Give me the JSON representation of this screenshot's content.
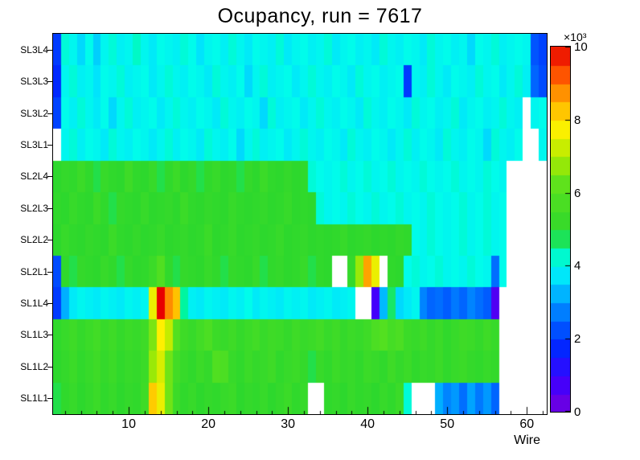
{
  "chart_data": {
    "type": "heatmap",
    "title": "Ocupancy, run = 7617",
    "xlabel": "Wire",
    "n_wires": 62,
    "x_range": [
      0.5,
      62.5
    ],
    "x_ticks": [
      10,
      20,
      30,
      40,
      50,
      60
    ],
    "z_range": [
      0,
      10
    ],
    "z_ticks": [
      0,
      2,
      4,
      6,
      8,
      10
    ],
    "z_exponent": "×10³",
    "values_unit": "×10³ counts",
    "no_data_color": "#ffffff",
    "frame_color": "#000000",
    "palette_stops": [
      [
        0.0,
        120,
        0,
        219
      ],
      [
        0.9,
        60,
        0,
        255
      ],
      [
        1.8,
        0,
        40,
        255
      ],
      [
        2.6,
        0,
        110,
        255
      ],
      [
        3.2,
        0,
        175,
        255
      ],
      [
        3.7,
        0,
        228,
        252
      ],
      [
        4.1,
        0,
        252,
        235
      ],
      [
        4.5,
        0,
        245,
        160
      ],
      [
        4.9,
        45,
        216,
        45
      ],
      [
        6.2,
        90,
        225,
        30
      ],
      [
        7.0,
        175,
        235,
        0
      ],
      [
        7.8,
        255,
        240,
        0
      ],
      [
        8.5,
        255,
        175,
        0
      ],
      [
        9.2,
        255,
        90,
        0
      ],
      [
        10.0,
        232,
        0,
        0
      ]
    ],
    "rows": [
      {
        "label": "SL3L4",
        "values": [
          2.0,
          4.2,
          4.0,
          3.6,
          4.1,
          3.5,
          4.0,
          4.2,
          3.9,
          4.0,
          4.3,
          4.0,
          3.8,
          4.1,
          4.0,
          3.9,
          4.2,
          4.1,
          3.7,
          4.0,
          4.1,
          3.9,
          4.2,
          4.0,
          3.8,
          4.1,
          4.0,
          3.9,
          4.2,
          3.8,
          4.0,
          4.1,
          3.9,
          4.0,
          4.2,
          3.8,
          4.0,
          4.1,
          3.9,
          4.0,
          3.8,
          4.2,
          4.0,
          3.9,
          4.1,
          4.0,
          3.8,
          4.2,
          4.0,
          4.1,
          3.9,
          4.0,
          3.6,
          4.1,
          4.0,
          4.2,
          3.9,
          4.0,
          4.1,
          4.0,
          2.3,
          2.1
        ]
      },
      {
        "label": "SL3L3",
        "values": [
          1.8,
          4.0,
          4.2,
          3.9,
          4.0,
          3.7,
          4.1,
          4.0,
          4.2,
          3.9,
          4.0,
          4.1,
          3.8,
          4.0,
          4.2,
          4.0,
          3.9,
          4.1,
          4.0,
          3.8,
          4.2,
          4.0,
          3.9,
          4.1,
          3.6,
          4.0,
          4.2,
          3.9,
          4.0,
          4.1,
          3.8,
          4.0,
          4.2,
          4.0,
          3.9,
          4.1,
          4.0,
          3.8,
          4.2,
          4.0,
          4.1,
          3.9,
          4.0,
          4.1,
          2.0,
          4.0,
          3.9,
          4.2,
          4.0,
          3.8,
          4.1,
          4.0,
          3.9,
          4.2,
          4.0,
          4.1,
          3.8,
          4.0,
          4.2,
          3.9,
          2.5,
          2.2
        ]
      },
      {
        "label": "SL3L2",
        "values": [
          2.1,
          4.1,
          3.9,
          4.2,
          4.0,
          3.8,
          4.1,
          3.6,
          4.0,
          4.2,
          3.9,
          4.0,
          4.1,
          3.8,
          4.0,
          4.2,
          4.0,
          3.9,
          4.1,
          4.0,
          3.8,
          4.2,
          4.0,
          3.9,
          4.1,
          4.0,
          3.6,
          4.2,
          3.9,
          4.0,
          4.1,
          3.8,
          4.0,
          4.2,
          4.0,
          3.9,
          4.1,
          4.0,
          3.8,
          4.2,
          4.0,
          3.9,
          4.1,
          4.0,
          3.8,
          4.2,
          4.0,
          4.1,
          3.9,
          4.0,
          4.2,
          3.8,
          4.0,
          4.1,
          3.9,
          4.0,
          4.2,
          4.0,
          3.9,
          null,
          4.0,
          4.1
        ]
      },
      {
        "label": "SL3L1",
        "values": [
          null,
          4.0,
          4.2,
          3.9,
          4.1,
          4.0,
          3.8,
          4.2,
          4.0,
          3.9,
          4.1,
          4.0,
          3.8,
          4.0,
          4.2,
          3.9,
          4.1,
          4.0,
          3.8,
          4.2,
          4.0,
          3.9,
          4.1,
          3.6,
          4.0,
          4.2,
          3.9,
          4.0,
          4.1,
          3.8,
          4.0,
          4.2,
          4.0,
          3.9,
          4.1,
          4.0,
          3.8,
          4.2,
          4.0,
          3.9,
          4.1,
          4.0,
          3.8,
          4.0,
          4.2,
          3.9,
          4.1,
          4.0,
          3.8,
          4.2,
          4.0,
          3.9,
          4.1,
          4.0,
          3.6,
          4.2,
          4.0,
          3.9,
          4.1,
          null,
          null,
          4.0
        ]
      },
      {
        "label": "SL2L4",
        "values": [
          4.9,
          5.1,
          5.0,
          5.3,
          5.0,
          4.8,
          5.2,
          5.0,
          4.9,
          5.4,
          5.0,
          4.9,
          5.2,
          4.8,
          5.0,
          5.3,
          4.9,
          5.1,
          4.8,
          5.0,
          5.2,
          4.9,
          5.0,
          4.8,
          5.1,
          4.9,
          5.3,
          5.0,
          4.9,
          5.1,
          4.9,
          5.0,
          4.2,
          4.1,
          4.0,
          4.1,
          4.2,
          4.0,
          4.1,
          4.2,
          4.0,
          4.1,
          4.2,
          4.0,
          4.1,
          4.0,
          4.2,
          4.1,
          4.0,
          4.1,
          4.2,
          4.0,
          4.1,
          4.0,
          4.2,
          4.1,
          4.0,
          null,
          null,
          null,
          null,
          null
        ]
      },
      {
        "label": "SL2L3",
        "values": [
          5.0,
          4.9,
          5.2,
          5.0,
          4.9,
          5.3,
          5.0,
          4.8,
          5.1,
          5.0,
          4.9,
          5.2,
          4.9,
          5.0,
          5.1,
          4.9,
          5.3,
          5.0,
          4.9,
          5.1,
          5.0,
          4.9,
          5.2,
          5.0,
          4.9,
          5.0,
          5.1,
          4.9,
          5.0,
          5.2,
          4.9,
          5.0,
          4.9,
          4.2,
          4.0,
          4.1,
          4.0,
          4.2,
          4.1,
          4.0,
          4.2,
          4.0,
          4.1,
          4.2,
          4.0,
          4.1,
          4.0,
          4.2,
          4.1,
          4.0,
          4.1,
          4.2,
          4.0,
          4.1,
          4.2,
          4.0,
          4.1,
          null,
          null,
          null,
          null,
          null
        ]
      },
      {
        "label": "SL2L2",
        "values": [
          4.9,
          5.2,
          5.0,
          4.9,
          5.1,
          5.0,
          4.9,
          5.3,
          5.0,
          4.9,
          5.1,
          4.9,
          5.0,
          5.2,
          4.9,
          5.0,
          5.1,
          4.9,
          5.0,
          5.3,
          4.9,
          5.0,
          5.2,
          4.9,
          5.0,
          5.1,
          4.9,
          5.0,
          5.2,
          4.9,
          5.0,
          5.1,
          4.9,
          5.0,
          4.9,
          5.0,
          5.2,
          4.9,
          5.0,
          5.1,
          4.9,
          5.0,
          4.9,
          5.1,
          5.0,
          4.1,
          4.0,
          4.2,
          4.1,
          4.0,
          4.1,
          4.2,
          4.0,
          4.1,
          4.2,
          4.0,
          4.1,
          null,
          null,
          null,
          null,
          null
        ]
      },
      {
        "label": "SL2L1",
        "values": [
          2.2,
          5.0,
          4.8,
          5.1,
          5.0,
          4.9,
          5.2,
          5.0,
          4.8,
          5.1,
          4.9,
          5.0,
          5.3,
          5.9,
          5.0,
          4.8,
          5.1,
          5.0,
          4.9,
          5.2,
          5.0,
          4.8,
          5.1,
          5.0,
          4.9,
          5.2,
          4.8,
          5.0,
          5.1,
          4.9,
          5.0,
          5.2,
          4.8,
          5.0,
          4.9,
          null,
          null,
          5.1,
          6.8,
          8.6,
          7.6,
          null,
          5.0,
          4.9,
          4.1,
          4.2,
          4.0,
          4.1,
          4.2,
          4.0,
          4.1,
          4.0,
          4.2,
          4.1,
          4.0,
          2.6,
          4.1,
          null,
          null,
          null,
          null,
          null
        ]
      },
      {
        "label": "SL1L4",
        "values": [
          2.0,
          3.2,
          3.8,
          4.0,
          3.9,
          3.8,
          4.0,
          3.9,
          3.8,
          4.0,
          3.9,
          4.0,
          7.6,
          10.0,
          8.8,
          8.3,
          4.5,
          3.9,
          3.8,
          4.0,
          3.9,
          3.8,
          4.0,
          3.9,
          4.1,
          3.8,
          4.0,
          3.9,
          3.8,
          4.0,
          3.9,
          4.0,
          3.8,
          3.9,
          4.0,
          3.8,
          3.9,
          4.0,
          null,
          null,
          0.8,
          3.3,
          4.7,
          3.6,
          3.8,
          4.0,
          2.8,
          2.5,
          2.6,
          2.4,
          2.7,
          2.5,
          2.8,
          2.6,
          2.4,
          0.6,
          null,
          null,
          null,
          null,
          null,
          null
        ]
      },
      {
        "label": "SL1L3",
        "values": [
          5.0,
          5.2,
          5.4,
          5.1,
          5.3,
          5.5,
          5.2,
          5.4,
          5.1,
          5.3,
          5.2,
          5.4,
          6.5,
          7.8,
          7.2,
          6.0,
          5.4,
          5.2,
          5.5,
          5.8,
          5.3,
          5.2,
          5.4,
          5.1,
          5.3,
          5.5,
          5.2,
          5.4,
          5.3,
          5.1,
          5.4,
          5.2,
          5.3,
          5.5,
          5.2,
          5.4,
          5.1,
          5.3,
          5.2,
          5.4,
          5.8,
          6.0,
          5.6,
          5.8,
          5.3,
          5.2,
          5.4,
          5.1,
          5.3,
          5.0,
          5.2,
          5.4,
          5.3,
          5.1,
          5.4,
          5.2,
          null,
          null,
          null,
          null,
          null,
          null
        ]
      },
      {
        "label": "SL1L2",
        "values": [
          4.9,
          5.1,
          5.3,
          5.0,
          5.2,
          5.4,
          5.1,
          5.3,
          5.0,
          5.2,
          5.1,
          5.3,
          6.8,
          7.4,
          6.4,
          5.5,
          5.2,
          5.0,
          5.3,
          5.1,
          5.9,
          5.8,
          5.2,
          5.0,
          5.3,
          5.1,
          5.2,
          5.4,
          5.0,
          5.2,
          5.3,
          5.1,
          4.8,
          5.2,
          5.0,
          5.3,
          5.1,
          5.2,
          5.0,
          5.3,
          5.2,
          5.0,
          5.4,
          5.1,
          5.3,
          5.0,
          5.2,
          5.1,
          5.3,
          5.0,
          5.2,
          5.3,
          5.1,
          5.0,
          5.2,
          5.1,
          null,
          null,
          null,
          null,
          null,
          null
        ]
      },
      {
        "label": "SL1L1",
        "values": [
          4.8,
          5.0,
          5.2,
          4.9,
          5.1,
          5.3,
          5.0,
          5.2,
          4.9,
          5.1,
          5.0,
          5.4,
          8.2,
          7.6,
          6.4,
          5.3,
          5.0,
          5.2,
          4.9,
          5.1,
          5.0,
          5.2,
          5.3,
          4.9,
          5.1,
          5.0,
          5.2,
          4.9,
          5.1,
          5.3,
          5.0,
          5.2,
          null,
          null,
          5.0,
          5.1,
          4.9,
          5.2,
          5.0,
          5.1,
          4.9,
          5.2,
          5.0,
          5.3,
          4.2,
          null,
          null,
          null,
          3.2,
          2.8,
          3.0,
          2.6,
          3.1,
          2.7,
          3.0,
          2.5,
          null,
          null,
          null,
          null,
          null,
          null
        ]
      }
    ]
  }
}
